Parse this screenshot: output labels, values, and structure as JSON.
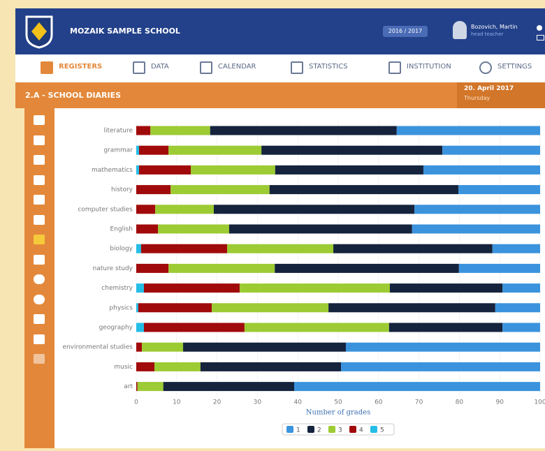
{
  "header": {
    "school": "MOZAIK SAMPLE SCHOOL",
    "year": "2016 / 2017",
    "user_name": "Bozovich, Martin",
    "user_role": "head teacher"
  },
  "nav": [
    "REGISTERS",
    "DATA",
    "CALENDAR",
    "STATISTICS",
    "INSTITUTION",
    "SETTINGS"
  ],
  "page": {
    "title": "2.A - SCHOOL DIARIES",
    "date": "20. April 2017",
    "weekday": "Thursday"
  },
  "chart_data": {
    "type": "bar",
    "orientation": "horizontal",
    "stacked": true,
    "x_label": "Number of grades",
    "categories": [
      "literature",
      "grammar",
      "mathematics",
      "history",
      "computer studies",
      "English",
      "biology",
      "nature study",
      "chemistry",
      "physics",
      "geography",
      "environmental studies",
      "music",
      "art"
    ],
    "series": [
      {
        "name": "1",
        "color": "#3b93dd",
        "values": [
          35.5,
          24.2,
          28.9,
          20.2,
          31.1,
          31.7,
          11.8,
          20.1,
          9.3,
          11.1,
          9.3,
          48.1,
          49.3,
          60.9
        ]
      },
      {
        "name": "2",
        "color": "#15233d",
        "values": [
          46.2,
          44.8,
          36.7,
          46.8,
          49.7,
          45.3,
          39.4,
          45.6,
          27.9,
          41.3,
          28.1,
          40.3,
          34.8,
          32.4
        ]
      },
      {
        "name": "3",
        "color": "#9ccb34",
        "values": [
          14.8,
          23.0,
          20.9,
          24.5,
          14.5,
          17.6,
          26.3,
          26.3,
          37.2,
          28.9,
          35.8,
          10.2,
          11.4,
          6.4
        ]
      },
      {
        "name": "4",
        "color": "#a10a0a",
        "values": [
          3.5,
          7.3,
          12.8,
          8.5,
          4.7,
          5.4,
          21.3,
          8.0,
          23.7,
          18.2,
          24.9,
          1.4,
          4.5,
          0.3
        ]
      },
      {
        "name": "5",
        "color": "#24bde6",
        "values": [
          0,
          0.7,
          0.7,
          0,
          0,
          0,
          1.2,
          0,
          1.9,
          0.5,
          1.9,
          0,
          0,
          0
        ]
      }
    ],
    "xlim": [
      0,
      100
    ],
    "xticks": [
      0,
      10,
      20,
      30,
      40,
      50,
      60,
      70,
      80,
      90,
      100
    ],
    "grid": true
  }
}
